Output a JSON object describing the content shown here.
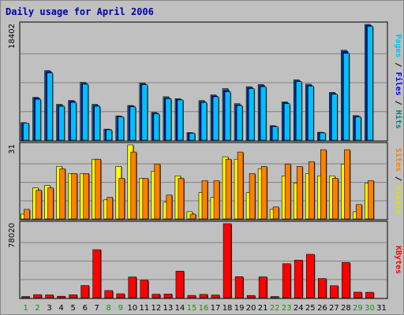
{
  "chart_data": {
    "type": "bar",
    "title": "Daily usage for April 2006",
    "categories": [
      "1",
      "2",
      "3",
      "4",
      "5",
      "6",
      "7",
      "8",
      "9",
      "10",
      "11",
      "12",
      "13",
      "14",
      "15",
      "16",
      "17",
      "18",
      "19",
      "20",
      "21",
      "22",
      "23",
      "24",
      "25",
      "26",
      "27",
      "28",
      "29",
      "30",
      "31"
    ],
    "weekend_days": [
      "1",
      "2",
      "8",
      "9",
      "15",
      "16",
      "22",
      "23",
      "29",
      "30"
    ],
    "panels": [
      {
        "name": "pages-files-hits",
        "max_label": "18402",
        "ymax": 18402,
        "side_label": [
          {
            "text": "Pages",
            "color": "#00c0ff"
          },
          {
            "text": " / ",
            "color": "#000000"
          },
          {
            "text": "Files",
            "color": "#0000ff"
          },
          {
            "text": " / ",
            "color": "#000000"
          },
          {
            "text": "Hits",
            "color": "#008080"
          }
        ],
        "series": [
          {
            "name": "Hits",
            "color": "#008080",
            "values": [
              2790,
              6800,
              11050,
              5700,
              6300,
              9200,
              5700,
              1750,
              3860,
              5510,
              9100,
              4400,
              6900,
              6600,
              1200,
              6300,
              7200,
              8200,
              5800,
              8500,
              8850,
              2300,
              6100,
              9600,
              8900,
              1250,
              7600,
              14300,
              3900,
              18402,
              0
            ]
          },
          {
            "name": "Files",
            "color": "#0000ff",
            "values": [
              2650,
              6700,
              10900,
              5500,
              6200,
              9000,
              5500,
              1700,
              3760,
              5410,
              8900,
              4300,
              6700,
              6450,
              1150,
              6100,
              7000,
              7900,
              5600,
              8300,
              8650,
              2200,
              5900,
              9400,
              8700,
              1200,
              7400,
              14100,
              3800,
              18250,
              0
            ]
          },
          {
            "name": "Pages",
            "color": "#00c0ff",
            "values": [
              2700,
              6500,
              10700,
              5400,
              6000,
              8900,
              5400,
              1650,
              3700,
              5300,
              8800,
              4200,
              6600,
              6400,
              1100,
              6000,
              6900,
              7700,
              5500,
              8200,
              8500,
              2150,
              5800,
              9300,
              8600,
              1150,
              7300,
              13800,
              3700,
              18100,
              0
            ]
          }
        ]
      },
      {
        "name": "visits-sites",
        "max_label": "31",
        "ymax": 31,
        "side_label": [
          {
            "text": "Sites",
            "color": "#ff8000"
          },
          {
            "text": " / ",
            "color": "#000000"
          },
          {
            "text": "Visits",
            "color": "#e0e000"
          }
        ],
        "series": [
          {
            "name": "Visits",
            "color": "#ffff00",
            "values": [
              2,
              13,
              14,
              22,
              19,
              19,
              25,
              8,
              22,
              31,
              17,
              20,
              7,
              18,
              3,
              11,
              9,
              26,
              25,
              11,
              21,
              4,
              18,
              15,
              19,
              18,
              18,
              23,
              3,
              15,
              0
            ]
          },
          {
            "name": "Sites",
            "color": "#ff8000",
            "values": [
              4,
              12,
              13,
              21,
              19,
              19,
              25,
              9,
              17,
              28,
              17,
              23,
              10,
              17,
              2,
              16,
              16,
              25,
              28,
              19,
              22,
              5,
              23,
              22,
              24,
              29,
              17,
              29,
              6,
              16,
              0
            ]
          }
        ]
      },
      {
        "name": "kbytes",
        "max_label": "78020",
        "ymax": 78020,
        "side_label": [
          {
            "text": "KBytes",
            "color": "#ff0000"
          }
        ],
        "series": [
          {
            "name": "KBytes",
            "color": "#ff0000",
            "values": [
              1200,
              3200,
              2900,
              1500,
              3000,
              12800,
              50600,
              7500,
              4100,
              21800,
              18400,
              3600,
              3900,
              27900,
              2400,
              3500,
              2800,
              78020,
              22100,
              2300,
              21900,
              1200,
              35800,
              39600,
              45700,
              20200,
              12600,
              37100,
              5800,
              5700,
              0
            ]
          }
        ]
      }
    ]
  }
}
